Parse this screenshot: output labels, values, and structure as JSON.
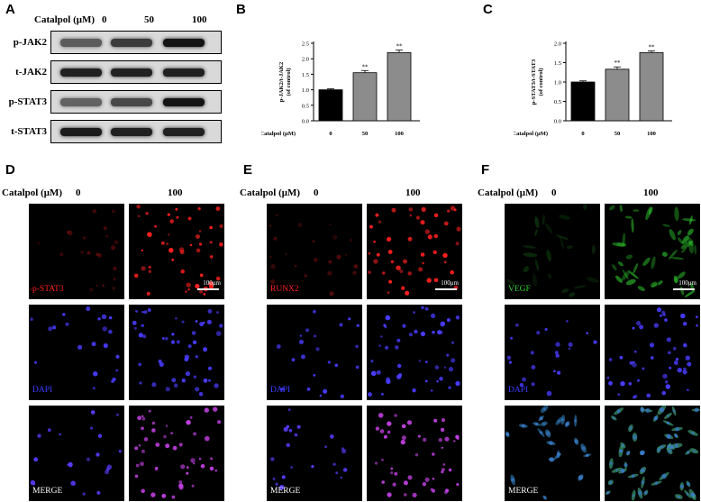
{
  "panels": {
    "A": "A",
    "B": "B",
    "C": "C",
    "D": "D",
    "E": "E",
    "F": "F"
  },
  "western": {
    "treatment_label": "Catalpol (μM)",
    "doses": [
      "0",
      "50",
      "100"
    ],
    "rows": [
      {
        "label": "p-JAK2",
        "levels": [
          0.45,
          0.7,
          1.0
        ]
      },
      {
        "label": "t-JAK2",
        "levels": [
          0.9,
          0.9,
          0.9
        ]
      },
      {
        "label": "p-STAT3",
        "levels": [
          0.4,
          0.6,
          1.0
        ]
      },
      {
        "label": "t-STAT3",
        "levels": [
          0.95,
          0.9,
          0.9
        ]
      }
    ]
  },
  "chart_data": [
    {
      "type": "bar",
      "panel": "B",
      "categories": [
        "0",
        "50",
        "100"
      ],
      "values": [
        1.0,
        1.55,
        2.2
      ],
      "errors": [
        0.03,
        0.07,
        0.08
      ],
      "colors": [
        "#000000",
        "#8c8c8c",
        "#8c8c8c"
      ],
      "annotations": [
        "",
        "**",
        "**"
      ],
      "xlabel": "Catalpol (μM)",
      "ylabel_line1": "p-JAK2/t-JAK2",
      "ylabel_line2": "(of control)",
      "ylim": [
        0,
        2.5
      ],
      "yticks": [
        "0.0",
        "0.5",
        "1.0",
        "1.5",
        "2.0",
        "2.5"
      ],
      "grid": false
    },
    {
      "type": "bar",
      "panel": "C",
      "categories": [
        "0",
        "50",
        "100"
      ],
      "values": [
        1.0,
        1.33,
        1.76
      ],
      "errors": [
        0.03,
        0.06,
        0.04
      ],
      "colors": [
        "#000000",
        "#8c8c8c",
        "#8c8c8c"
      ],
      "annotations": [
        "",
        "**",
        "**"
      ],
      "xlabel": "Catalpol (μM)",
      "ylabel_line1": "p-STAT3/t-STAT3",
      "ylabel_line2": "(of control)",
      "ylim": [
        0,
        2.0
      ],
      "yticks": [
        "0.0",
        "0.5",
        "1.0",
        "1.5",
        "2.0"
      ],
      "grid": false
    }
  ],
  "fluorescence": [
    {
      "panel": "D",
      "treatment_label": "Catalpol (μM)",
      "doses": [
        "0",
        "100"
      ],
      "marker": "p-STAT3",
      "marker_color": "#ff2020",
      "counter": "DAPI",
      "merge": "MERGE",
      "scale": "100μm"
    },
    {
      "panel": "E",
      "treatment_label": "Catalpol (μM)",
      "doses": [
        "0",
        "100"
      ],
      "marker": "RUNX2",
      "marker_color": "#ff2020",
      "counter": "DAPI",
      "merge": "MERGE",
      "scale": "100μm"
    },
    {
      "panel": "F",
      "treatment_label": "Catalpol (μM)",
      "doses": [
        "0",
        "100"
      ],
      "marker": "VEGF",
      "marker_color": "#30d030",
      "counter": "DAPI",
      "merge": "MERGE",
      "scale": "100μm"
    }
  ]
}
